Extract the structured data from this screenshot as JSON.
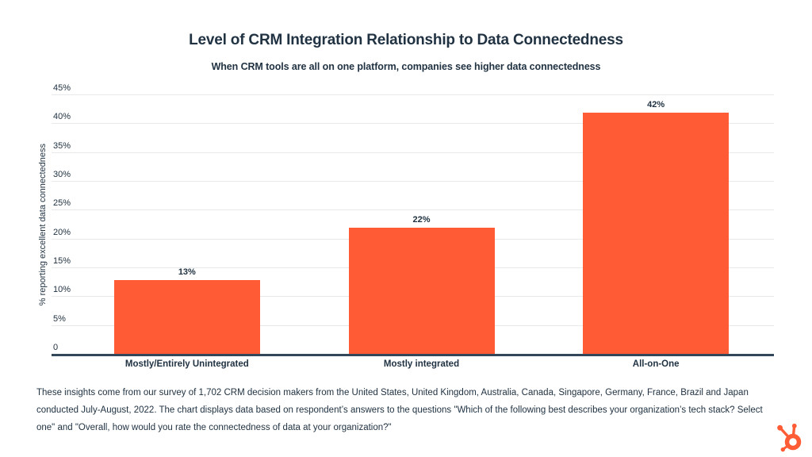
{
  "chart_data": {
    "type": "bar",
    "title": "Level of CRM Integration Relationship to Data Connectedness",
    "subtitle": "When CRM tools are all on one platform, companies see higher data connectedness",
    "categories": [
      "Mostly/Entirely Unintegrated",
      "Mostly integrated",
      "All-on-One"
    ],
    "values": [
      13,
      22,
      42
    ],
    "value_labels": [
      "13%",
      "22%",
      "42%"
    ],
    "xlabel": "",
    "ylabel": "% reporting excellent data connectedness",
    "ylim": [
      0,
      45
    ],
    "yticks": [
      {
        "value": 45,
        "label": "45%"
      },
      {
        "value": 40,
        "label": "40%"
      },
      {
        "value": 35,
        "label": "35%"
      },
      {
        "value": 30,
        "label": "30%"
      },
      {
        "value": 25,
        "label": "25%"
      },
      {
        "value": 20,
        "label": "20%"
      },
      {
        "value": 15,
        "label": "15%"
      },
      {
        "value": 10,
        "label": "10%"
      },
      {
        "value": 5,
        "label": "5%"
      },
      {
        "value": 0,
        "label": "0"
      }
    ],
    "grid": "horizontal",
    "legend": "none",
    "bar_color": "#FF5C35"
  },
  "footer": {
    "note": "These insights come from our survey of 1,702 CRM decision makers from the United States, United Kingdom, Australia, Canada, Singapore, Germany, France, Brazil and Japan conducted July-August, 2022. The chart displays data based on respondent’s answers to the questions \"Which of the following best describes your organization’s tech stack? Select one\" and \"Overall, how would you rate the connectedness of data at your organization?\""
  },
  "branding": {
    "logo_name": "hubspot-sprocket",
    "logo_color": "#FF5C35"
  },
  "colors": {
    "accent_orange": "#FF5C35",
    "text_navy": "#213343",
    "gridline_gray": "#e7e9eb",
    "axis_navy": "#33475b"
  }
}
